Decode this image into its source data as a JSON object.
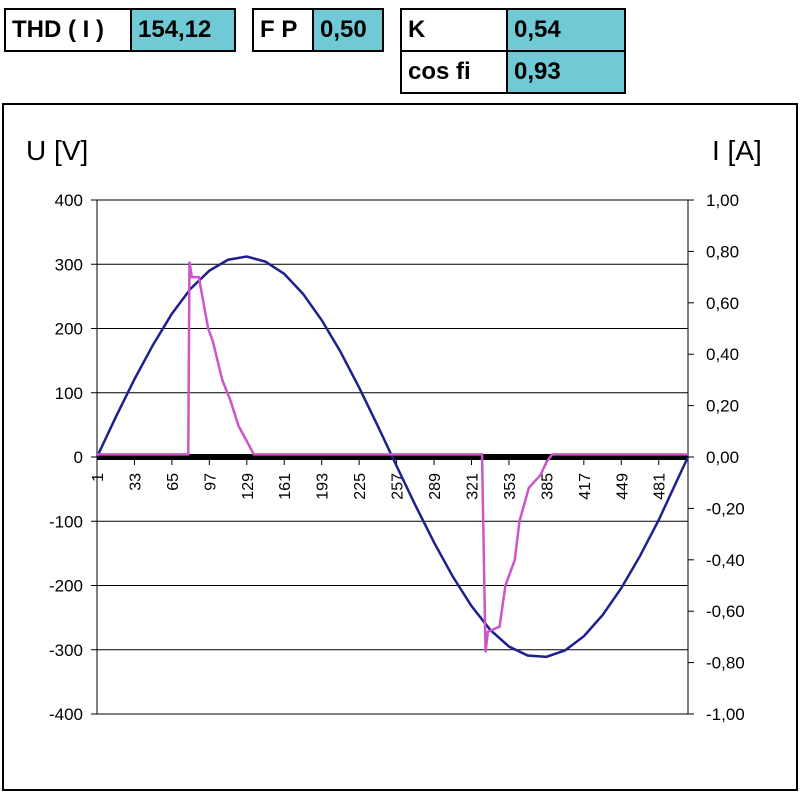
{
  "header": {
    "boxes": [
      {
        "label": "THD ( I )",
        "value": "154,12"
      },
      {
        "label": "F P",
        "value": "0,50"
      },
      {
        "label": "K",
        "value": "0,54"
      },
      {
        "label": "cos fi",
        "value": "0,93"
      }
    ]
  },
  "chart_data": {
    "type": "line",
    "ylabel": "U [V]",
    "y2label": "I [A]",
    "xlim": [
      1,
      506
    ],
    "xticks": [
      1,
      33,
      65,
      97,
      129,
      161,
      193,
      225,
      257,
      289,
      321,
      353,
      385,
      417,
      449,
      481
    ],
    "ylim": [
      -400,
      400
    ],
    "yticks": [
      -400,
      -300,
      -200,
      -100,
      0,
      100,
      200,
      300,
      400
    ],
    "y2lim": [
      -1,
      1
    ],
    "y2ticks": [
      {
        "value": -1,
        "label": "-1,00"
      },
      {
        "value": -0.8,
        "label": "-0,80"
      },
      {
        "value": -0.6,
        "label": "-0,60"
      },
      {
        "value": -0.4,
        "label": "-0,40"
      },
      {
        "value": -0.2,
        "label": "-0,20"
      },
      {
        "value": 0,
        "label": "0,00"
      },
      {
        "value": 0.2,
        "label": "0,20"
      },
      {
        "value": 0.4,
        "label": "0,40"
      },
      {
        "value": 0.6,
        "label": "0,60"
      },
      {
        "value": 0.8,
        "label": "0,80"
      },
      {
        "value": 1,
        "label": "1,00"
      }
    ],
    "grid": true,
    "series": [
      {
        "color": "#1f1f8f",
        "axis": "y",
        "x": [
          1,
          17,
          33,
          49,
          65,
          81,
          97,
          113,
          129,
          145,
          161,
          177,
          193,
          209,
          225,
          241,
          257,
          273,
          289,
          305,
          321,
          337,
          353,
          369,
          385,
          401,
          417,
          433,
          449,
          465,
          481,
          497,
          506
        ],
        "values": [
          0,
          62,
          121,
          175,
          223,
          262,
          290,
          307,
          312,
          304,
          285,
          254,
          213,
          164,
          108,
          48,
          -14,
          -75,
          -133,
          -186,
          -232,
          -269,
          -295,
          -309,
          -311,
          -301,
          -279,
          -246,
          -204,
          -154,
          -98,
          -35,
          0
        ]
      },
      {
        "color": "#cc55cc",
        "axis": "y2",
        "x": [
          1,
          79,
          80,
          82,
          88,
          96,
          100,
          108,
          115,
          122,
          128,
          135,
          330,
          333,
          335,
          345,
          350,
          358,
          362,
          370,
          380,
          385,
          390,
          506
        ],
        "values": [
          0.01,
          0.01,
          0.76,
          0.7,
          0.7,
          0.5,
          0.45,
          0.3,
          0.22,
          0.12,
          0.07,
          0.01,
          0.01,
          -0.76,
          -0.68,
          -0.66,
          -0.5,
          -0.4,
          -0.25,
          -0.12,
          -0.07,
          -0.02,
          0.01,
          0.01
        ]
      }
    ]
  }
}
